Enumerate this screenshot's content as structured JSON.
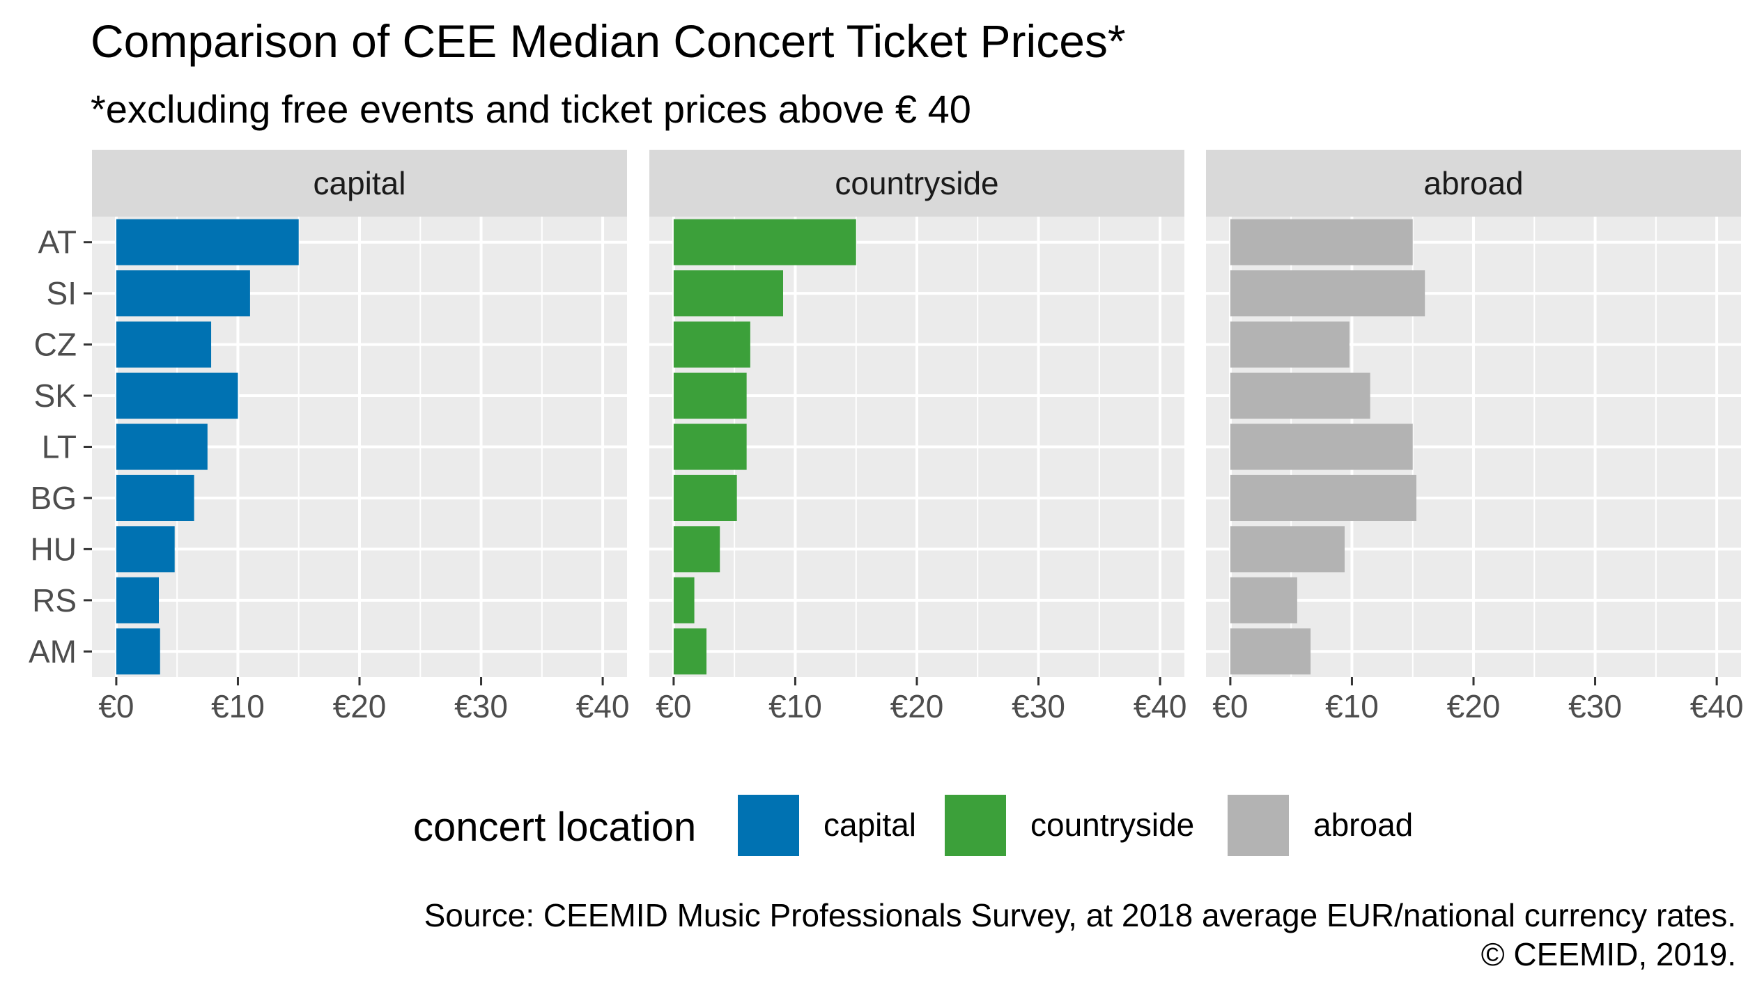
{
  "chart_data": {
    "type": "bar",
    "orientation": "horizontal",
    "title": "Comparison of CEE Median Concert Ticket Prices*",
    "subtitle": "*excluding free events and ticket prices above € 40",
    "categories": [
      "AT",
      "SI",
      "CZ",
      "SK",
      "LT",
      "BG",
      "HU",
      "RS",
      "AM"
    ],
    "facets": [
      "capital",
      "countryside",
      "abroad"
    ],
    "series": [
      {
        "name": "capital",
        "color": "#0072B2",
        "values": [
          15.0,
          11.0,
          7.8,
          10.0,
          7.5,
          6.4,
          4.8,
          3.5,
          3.6
        ]
      },
      {
        "name": "countryside",
        "color": "#3CA03A",
        "values": [
          15.0,
          9.0,
          6.3,
          6.0,
          6.0,
          5.2,
          3.8,
          1.7,
          2.7
        ]
      },
      {
        "name": "abroad",
        "color": "#B3B3B3",
        "values": [
          15.0,
          16.0,
          9.8,
          11.5,
          15.0,
          15.3,
          9.4,
          5.5,
          6.6
        ]
      }
    ],
    "x_ticks": [
      "€0",
      "€10",
      "€20",
      "€30",
      "€40"
    ],
    "x_tick_values": [
      0,
      10,
      20,
      30,
      40
    ],
    "xlim": [
      -2,
      42
    ],
    "grid": true,
    "legend": {
      "title": "concert location",
      "placement": "bottom",
      "items": [
        "capital",
        "countryside",
        "abroad"
      ]
    },
    "caption": [
      "Source: CEEMID Music Professionals Survey, at 2018 average EUR/national currency rates.",
      "© CEEMID, 2019."
    ]
  },
  "colors": {
    "panel_background": "#EBEBEB",
    "strip_background": "#D9D9D9",
    "grid_major": "#FFFFFF",
    "tick": "#333333"
  }
}
